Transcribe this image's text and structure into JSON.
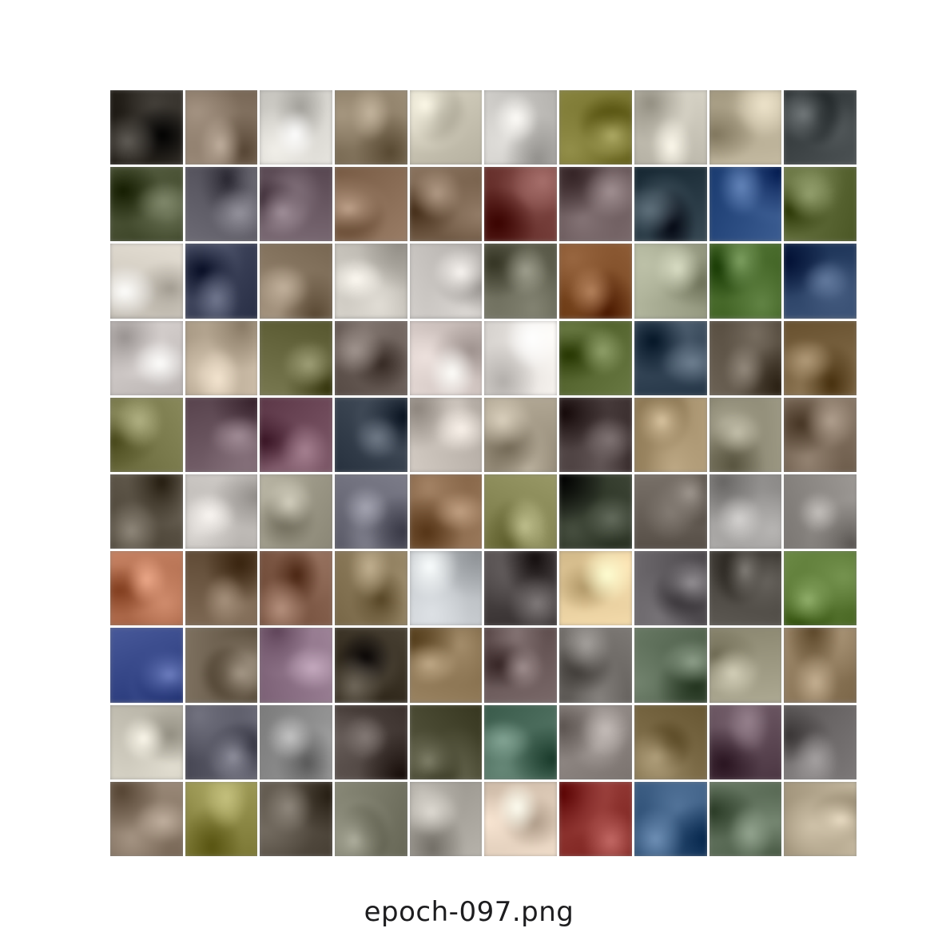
{
  "viewer": {
    "caption": "epoch-097.png"
  },
  "grid": {
    "rows": 10,
    "columns": 10,
    "tiles": [
      [
        "#2a2620",
        "#8a7a6a",
        "#d8d6d0",
        "#8c7e68",
        "#c9c4b4",
        "#c8c6c2",
        "#7a7634",
        "#c8c4b8",
        "#b6ac94",
        "#3e4446"
      ],
      [
        "#4a5236",
        "#5e5c66",
        "#6a5a64",
        "#8a6e58",
        "#7a6450",
        "#6e3a36",
        "#6a5a5c",
        "#2a3a44",
        "#2e4e80",
        "#5e6a3a"
      ],
      [
        "#d6d0c6",
        "#3c4258",
        "#8a7a66",
        "#c8c4bc",
        "#c4c0bc",
        "#6a6a5a",
        "#7e4e2a",
        "#a4a890",
        "#4a6a2e",
        "#2e4466"
      ],
      [
        "#cec8c6",
        "#bcae9a",
        "#6a6a44",
        "#6a5e58",
        "#d4c8c4",
        "#e8e4e0",
        "#5a6a36",
        "#3a4a5a",
        "#5e5448",
        "#7a6444"
      ],
      [
        "#7a7a4e",
        "#6a5660",
        "#6e4a5a",
        "#3a4450",
        "#c4bcb4",
        "#a49a88",
        "#4a3e3e",
        "#a4906e",
        "#8e8a76",
        "#7a6a5a"
      ],
      [
        "#5a5246",
        "#c4c0bc",
        "#9e9a8a",
        "#6e6e7a",
        "#8a6a4e",
        "#8a8a5a",
        "#2e3628",
        "#6a625a",
        "#9e9c9a",
        "#8e8a86"
      ],
      [
        "#b47456",
        "#6e5a46",
        "#7e5a48",
        "#8a7a5c",
        "#c4c8cc",
        "#4a4444",
        "#e4cc9e",
        "#5e5a5e",
        "#4e4a44",
        "#5e7a3a"
      ],
      [
        "#3a4a88",
        "#6e6252",
        "#8e7488",
        "#3a3226",
        "#8a7454",
        "#6a5a5a",
        "#6e6a66",
        "#5a6a56",
        "#9e9a84",
        "#8e7a5e"
      ],
      [
        "#c8c4b8",
        "#5a5a66",
        "#8e8e8e",
        "#4e4440",
        "#4a4a34",
        "#4e6e5e",
        "#8e8682",
        "#7a6a48",
        "#5e4a56",
        "#6e6a6a"
      ],
      [
        "#8a7a6a",
        "#8e8a4a",
        "#5a5248",
        "#7a7a6a",
        "#a8a49c",
        "#e0cebc",
        "#8a3430",
        "#3a5a7e",
        "#5e6e5a",
        "#b4a890"
      ]
    ]
  }
}
